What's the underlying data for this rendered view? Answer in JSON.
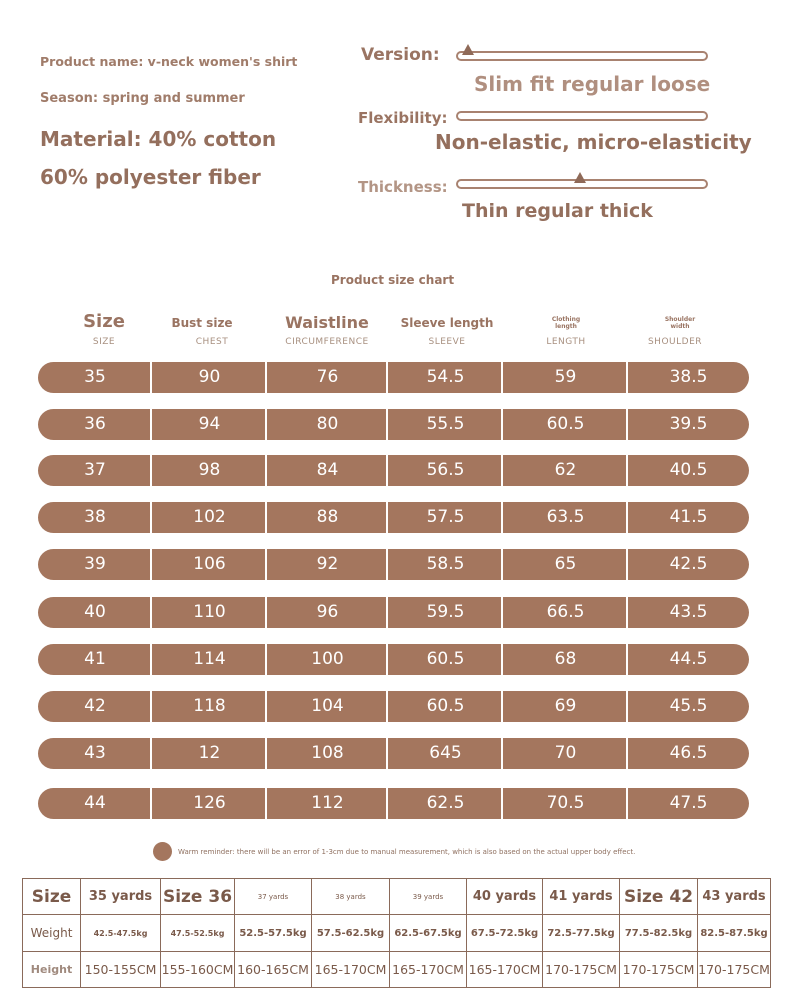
{
  "product_info": {
    "name": "Product name: v-neck women's shirt",
    "season": "Season: spring and summer",
    "material_line1": "Material: 40% cotton",
    "material_line2": "60% polyester fiber"
  },
  "attributes": [
    {
      "label": "Version:",
      "options": "Slim fit regular loose",
      "marker_position": 0.04
    },
    {
      "label": "Flexibility:",
      "options": "Non-elastic, micro-elasticity",
      "marker_position": null
    },
    {
      "label": "Thickness:",
      "options": "Thin regular thick",
      "marker_position": 0.49
    }
  ],
  "size_chart": {
    "title": "Product size chart",
    "headers": [
      {
        "main": "Size",
        "sub": "SIZE"
      },
      {
        "main": "Bust size",
        "sub": "CHEST"
      },
      {
        "main": "Waistline",
        "sub": "CIRCUMFERENCE"
      },
      {
        "main": "Sleeve length",
        "sub": "SLEEVE"
      },
      {
        "main_line1": "Clothing",
        "main_line2": "length",
        "sub": "LENGTH"
      },
      {
        "main_line1": "Shoulder",
        "main_line2": "width",
        "sub": "SHOULDER"
      }
    ],
    "rows": [
      [
        "35",
        "90",
        "76",
        "54.5",
        "59",
        "38.5"
      ],
      [
        "36",
        "94",
        "80",
        "55.5",
        "60.5",
        "39.5"
      ],
      [
        "37",
        "98",
        "84",
        "56.5",
        "62",
        "40.5"
      ],
      [
        "38",
        "102",
        "88",
        "57.5",
        "63.5",
        "41.5"
      ],
      [
        "39",
        "106",
        "92",
        "58.5",
        "65",
        "42.5"
      ],
      [
        "40",
        "110",
        "96",
        "59.5",
        "66.5",
        "43.5"
      ],
      [
        "41",
        "114",
        "100",
        "60.5",
        "68",
        "44.5"
      ],
      [
        "42",
        "118",
        "104",
        "60.5",
        "69",
        "45.5"
      ],
      [
        "43",
        "12",
        "108",
        "645",
        "70",
        "46.5"
      ],
      [
        "44",
        "126",
        "112",
        "62.5",
        "70.5",
        "47.5"
      ]
    ]
  },
  "reminder": "Warm reminder: there will be an error of 1-3cm due to manual measurement, which is also based on the actual upper body effect.",
  "fit_table": {
    "size_row": [
      "Size",
      "35 yards",
      "Size 36",
      "37 yards",
      "38 yards",
      "39 yards",
      "40 yards",
      "41 yards",
      "Size 42",
      "43 yards"
    ],
    "weight_row": [
      "Weight",
      "42.5-47.5kg",
      "47.5-52.5kg",
      "52.5-57.5kg",
      "57.5-62.5kg",
      "62.5-67.5kg",
      "67.5-72.5kg",
      "72.5-77.5kg",
      "77.5-82.5kg",
      "82.5-87.5kg"
    ],
    "height_row": [
      "Height",
      "150-155CM",
      "155-160CM",
      "160-165CM",
      "165-170CM",
      "165-170CM",
      "165-170CM",
      "170-175CM",
      "170-175CM",
      "170-175CM"
    ]
  },
  "colors": {
    "accent": "#a4765e",
    "text": "#9a7462",
    "table_text": "#7a5a4a"
  }
}
